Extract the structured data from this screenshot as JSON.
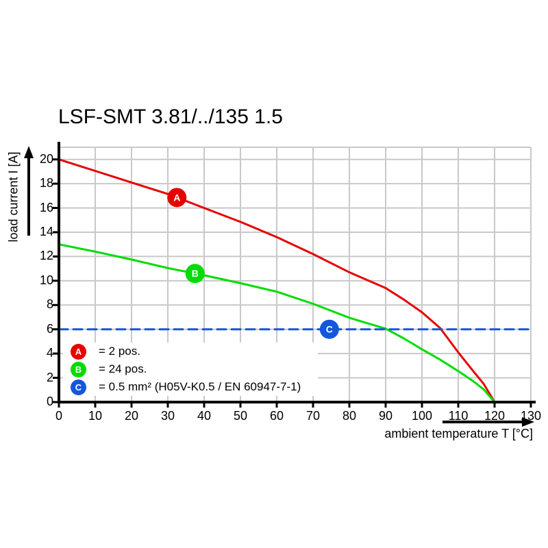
{
  "title": "LSF-SMT 3.81/../135 1.5",
  "chart_data": {
    "type": "line",
    "title": "LSF-SMT 3.81/../135 1.5",
    "xlabel": "ambient temperature T [°C]",
    "ylabel": "load current I [A]",
    "xlim": [
      0,
      130
    ],
    "ylim": [
      0,
      21
    ],
    "x_ticks": [
      0,
      10,
      20,
      30,
      40,
      50,
      60,
      70,
      80,
      90,
      100,
      110,
      120,
      130
    ],
    "y_ticks": [
      0,
      2,
      4,
      6,
      8,
      10,
      12,
      14,
      16,
      18,
      20
    ],
    "grid": true,
    "grid_color": "#c8c8c8",
    "axis_color": "#000000",
    "legend_position": "bottom-left-inside",
    "series": [
      {
        "name": "A",
        "legend_label": "= 2 pos.",
        "color": "#e60000",
        "style": "solid",
        "points": [
          [
            0,
            20
          ],
          [
            10,
            19.05
          ],
          [
            20,
            18.1
          ],
          [
            30,
            17.15
          ],
          [
            40,
            16.0
          ],
          [
            50,
            14.85
          ],
          [
            60,
            13.6
          ],
          [
            70,
            12.2
          ],
          [
            80,
            10.7
          ],
          [
            85,
            10.05
          ],
          [
            90,
            9.4
          ],
          [
            95,
            8.45
          ],
          [
            100,
            7.4
          ],
          [
            105,
            6.1
          ],
          [
            110,
            4.1
          ],
          [
            114,
            2.6
          ],
          [
            117,
            1.5
          ],
          [
            120,
            0
          ]
        ],
        "marker": {
          "letter": "A",
          "t": 32.5,
          "value": 16.86
        }
      },
      {
        "name": "B",
        "legend_label": "= 24 pos.",
        "color": "#00dc00",
        "style": "solid",
        "points": [
          [
            0,
            13
          ],
          [
            10,
            12.4
          ],
          [
            20,
            11.75
          ],
          [
            30,
            11.05
          ],
          [
            40,
            10.45
          ],
          [
            50,
            9.8
          ],
          [
            60,
            9.1
          ],
          [
            70,
            8.1
          ],
          [
            80,
            6.95
          ],
          [
            85,
            6.5
          ],
          [
            90,
            6.05
          ],
          [
            95,
            5.25
          ],
          [
            100,
            4.35
          ],
          [
            105,
            3.5
          ],
          [
            110,
            2.55
          ],
          [
            114,
            1.75
          ],
          [
            117,
            1.05
          ],
          [
            120,
            0
          ]
        ],
        "marker": {
          "letter": "B",
          "t": 37.5,
          "value": 10.6
        }
      },
      {
        "name": "C",
        "legend_label": "= 0.5 mm² (H05V-K0.5 / EN 60947-7-1)",
        "color": "#1456dd",
        "style": "dashed",
        "points": [
          [
            0,
            6
          ],
          [
            130,
            6
          ]
        ],
        "marker": {
          "letter": "C",
          "t": 74.5,
          "value": 6
        }
      }
    ]
  }
}
